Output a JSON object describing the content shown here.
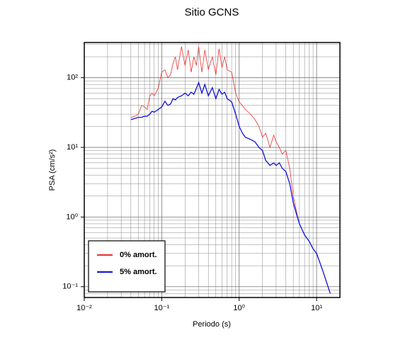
{
  "chart_data": {
    "type": "line",
    "title": "Sitio GCNS",
    "xlabel": "Periodo (s)",
    "ylabel": "PSA (cm/s²)",
    "log_x": true,
    "log_y": true,
    "grid": true,
    "legend_position": "lower left",
    "xlim": [
      0.01,
      20
    ],
    "ylim": [
      0.07,
      320
    ],
    "xticks": [
      {
        "value": 0.01,
        "label": "10⁻²"
      },
      {
        "value": 0.1,
        "label": "10⁻¹"
      },
      {
        "value": 1,
        "label": "10⁰"
      },
      {
        "value": 10,
        "label": "10¹"
      }
    ],
    "yticks": [
      {
        "value": 0.1,
        "label": "10⁻¹"
      },
      {
        "value": 1,
        "label": "10⁰"
      },
      {
        "value": 10,
        "label": "10¹"
      },
      {
        "value": 100,
        "label": "10²"
      }
    ],
    "xminorticks": [
      0.02,
      0.03,
      0.04,
      0.05,
      0.06,
      0.07,
      0.08,
      0.09,
      0.2,
      0.3,
      0.4,
      0.5,
      0.6,
      0.7,
      0.8,
      0.9,
      2,
      3,
      4,
      5,
      6,
      7,
      8,
      9
    ],
    "yminorticks": [
      0.08,
      0.09,
      0.2,
      0.3,
      0.4,
      0.5,
      0.6,
      0.7,
      0.8,
      0.9,
      2,
      3,
      4,
      5,
      6,
      7,
      8,
      9,
      20,
      30,
      40,
      50,
      60,
      70,
      80,
      90,
      200,
      300
    ],
    "x": [
      0.04,
      0.045,
      0.05,
      0.055,
      0.06,
      0.065,
      0.07,
      0.075,
      0.08,
      0.09,
      0.1,
      0.11,
      0.12,
      0.13,
      0.14,
      0.15,
      0.16,
      0.18,
      0.2,
      0.22,
      0.24,
      0.26,
      0.28,
      0.3,
      0.33,
      0.36,
      0.4,
      0.45,
      0.5,
      0.55,
      0.6,
      0.65,
      0.7,
      0.8,
      0.9,
      1.0,
      1.1,
      1.2,
      1.4,
      1.6,
      1.8,
      2.0,
      2.2,
      2.5,
      2.8,
      3.0,
      3.3,
      3.6,
      4.0,
      4.5,
      5.0,
      5.5,
      6.0,
      7.0,
      8.0,
      9.0,
      10,
      12,
      15
    ],
    "series": [
      {
        "name": "0% amort.",
        "color": "#e8312f",
        "values": [
          27,
          28,
          30,
          40,
          38,
          35,
          55,
          60,
          55,
          70,
          120,
          130,
          100,
          110,
          160,
          200,
          130,
          280,
          150,
          250,
          120,
          200,
          150,
          280,
          120,
          250,
          130,
          200,
          110,
          260,
          140,
          200,
          130,
          120,
          60,
          45,
          40,
          35,
          30,
          25,
          20,
          14,
          16,
          10,
          15,
          12,
          10,
          8,
          9,
          5,
          2,
          1.2,
          0.8,
          0.55,
          0.45,
          0.35,
          0.3,
          0.17,
          0.08
        ]
      },
      {
        "name": "5% amort.",
        "color": "#1010e0",
        "values": [
          25,
          26,
          27,
          27,
          28,
          28,
          30,
          33,
          32,
          35,
          38,
          46,
          40,
          42,
          50,
          48,
          52,
          55,
          60,
          55,
          62,
          58,
          70,
          85,
          60,
          80,
          55,
          72,
          50,
          68,
          58,
          62,
          50,
          45,
          30,
          20,
          16,
          14,
          13,
          12,
          10,
          9,
          6.5,
          5.5,
          6,
          5.5,
          6,
          5,
          4.5,
          3,
          1.6,
          1.1,
          0.8,
          0.55,
          0.45,
          0.35,
          0.3,
          0.17,
          0.08
        ]
      }
    ]
  }
}
